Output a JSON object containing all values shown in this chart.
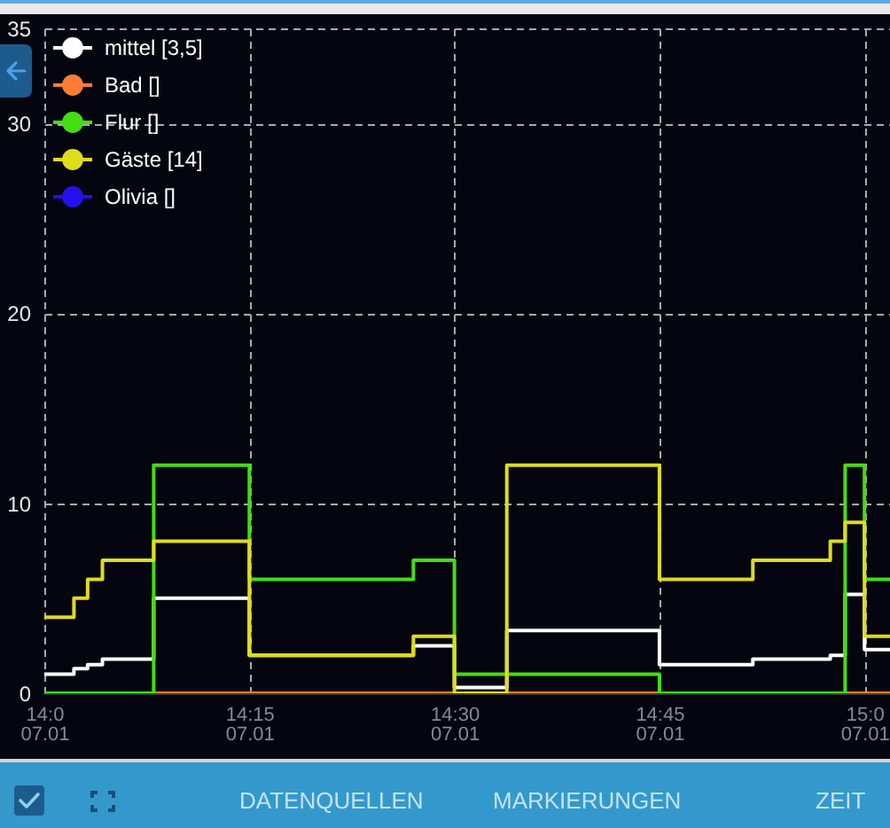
{
  "chart_data": {
    "type": "step",
    "x": [
      "--01-07T14:00",
      "--01-07T14:02:10",
      "--01-07T14:03:10",
      "--01-07T14:04:15",
      "--01-07T14:08",
      "--01-07T14:15",
      "--01-07T14:27",
      "--01-07T14:30",
      "--01-07T14:33:50",
      "--01-07T14:45",
      "--01-07T14:51:50",
      "--01-07T14:57:30",
      "--01-07T14:58:35",
      "--01-07T15:00",
      "--01-07T15:01:52"
    ],
    "series": [
      {
        "name": "mittel [3,5]",
        "color": "#ffffff",
        "values": [
          1,
          1.3,
          1.5,
          1.8,
          5,
          2,
          2.5,
          0.3,
          3.3,
          1.5,
          1.8,
          2,
          5.2,
          2.3,
          2.3
        ]
      },
      {
        "name": "Bad []",
        "color": "#ff7c35",
        "values": [
          null,
          null,
          null,
          null,
          0,
          0,
          0,
          0,
          0,
          0,
          0,
          0,
          0,
          0,
          0
        ]
      },
      {
        "name": "Flur []",
        "color": "#44dd11",
        "values": [
          0,
          0,
          0,
          0,
          12,
          6,
          7,
          1,
          1,
          0,
          0,
          0,
          12,
          6,
          6
        ]
      },
      {
        "name": "Gäste [14]",
        "color": "#e0dc1a",
        "values": [
          4,
          5,
          6,
          7,
          8,
          2,
          3,
          0,
          12,
          6,
          7,
          8,
          9,
          3,
          3
        ]
      },
      {
        "name": "Olivia []",
        "color": "#2211ee",
        "values": [
          null,
          null,
          null,
          null,
          null,
          null,
          null,
          null,
          null,
          null,
          null,
          null,
          null,
          null,
          null
        ]
      }
    ],
    "xlim": [
      "--01-07T14:00",
      "--01-07T15:01:52"
    ],
    "xticks": [
      {
        "value": "--01-07T14:00",
        "label": "14:0\n07.01"
      },
      {
        "value": "--01-07T14:15",
        "label": "14:15\n07.01"
      },
      {
        "value": "--01-07T14:30",
        "label": "14:30\n07.01"
      },
      {
        "value": "--01-07T14:45",
        "label": "14:45\n07.01"
      },
      {
        "value": "--01-07T15:00",
        "label": "15:0\n07.01"
      }
    ],
    "ylim": [
      0,
      35
    ],
    "yticks": [
      0,
      10,
      20,
      30,
      35
    ],
    "grid": true,
    "legend": "top left",
    "annotations": [
      "DATENQUELLEN",
      "MARKIERUNGEN",
      "ZEIT"
    ]
  }
}
